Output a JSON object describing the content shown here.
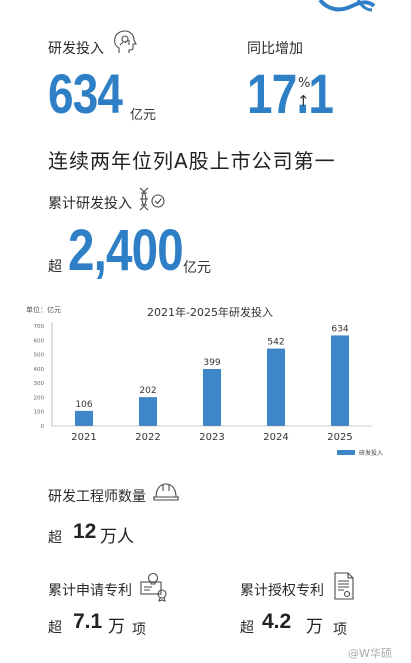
{
  "rd_investment": {
    "label": "研发投入",
    "value": "634",
    "unit": "亿元",
    "icon": "head-gear-icon"
  },
  "yoy_growth": {
    "label": "同比增加",
    "value": "17.1",
    "unit": "%",
    "arrow": "↑"
  },
  "headline": "连续两年位列A股上市公司第一",
  "cumulative_rd": {
    "label": "累计研发投入",
    "prefix": "超",
    "value": "2,400",
    "unit": "亿元",
    "icon": "dna-check-icon"
  },
  "chart_data": {
    "type": "bar",
    "title": "2021年-2025年研发投入",
    "unit_label": "单位：亿元",
    "categories": [
      "2021",
      "2022",
      "2023",
      "2024",
      "2025"
    ],
    "series": [
      {
        "name": "研发投入",
        "values": [
          106,
          202,
          399,
          542,
          634
        ]
      }
    ],
    "yticks": [
      0,
      100,
      200,
      300,
      400,
      500,
      600,
      700
    ],
    "ylim": [
      0,
      700
    ],
    "grid": false,
    "legend": "bottom-right",
    "bar_color": "#3f86c8"
  },
  "engineers": {
    "label": "研发工程师数量",
    "prefix": "超",
    "value": "12",
    "unit": "万人",
    "icon": "hard-hat-icon"
  },
  "patent_applications": {
    "label": "累计申请专利",
    "prefix": "超",
    "value": "7.1",
    "unit1": "万",
    "unit2": "项",
    "icon": "lightbulb-certificate-icon"
  },
  "patents_granted": {
    "label": "累计授权专利",
    "prefix": "超",
    "value": "4.2",
    "unit1": "万",
    "unit2": "项",
    "icon": "document-seal-icon"
  },
  "watermark": "@W华硕"
}
